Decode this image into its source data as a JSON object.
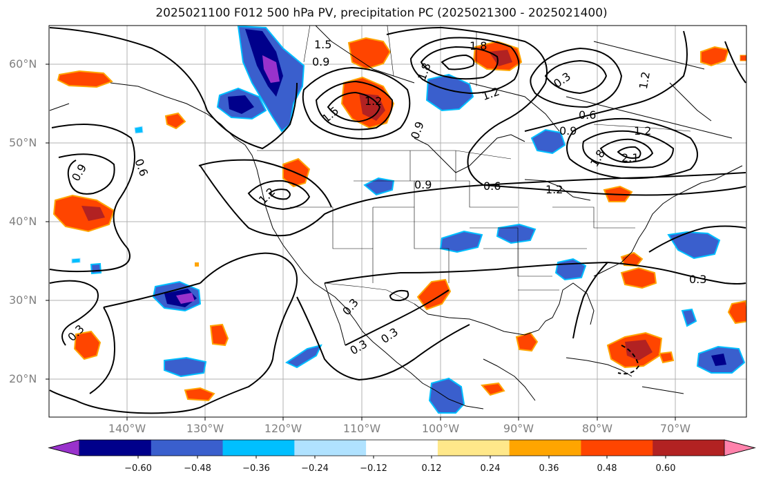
{
  "title": "2025021100 F012 500 hPa PV, precipitation PC (2025021300 - 2025021400)",
  "lat_labels": [
    "60°N",
    "50°N",
    "40°N",
    "30°N",
    "20°N"
  ],
  "lon_labels": [
    "140°W",
    "130°W",
    "120°W",
    "110°W",
    "100°W",
    "90°W",
    "80°W",
    "70°W"
  ],
  "contour_labels": [
    "1.5",
    "0.9",
    "1.8",
    "1.2",
    "1.5",
    "1.2",
    "1.8",
    "0.9",
    "1.2",
    "0.3",
    "0.6",
    "0.9",
    "1.8",
    "2.1",
    "1.2",
    "1.2",
    "0.9",
    "0.6",
    "0.9",
    "1.2",
    "0.6",
    "0.3",
    "0.3",
    "0.3",
    "0.3",
    "0.3"
  ],
  "colorbar": {
    "ticks": [
      "−0.60",
      "−0.48",
      "−0.36",
      "−0.24",
      "−0.12",
      "0.12",
      "0.24",
      "0.36",
      "0.48",
      "0.60"
    ],
    "colors": [
      "#9932cc",
      "#00008b",
      "#3a5fcd",
      "#00bfff",
      "#b0e2ff",
      "#ffffff",
      "#ffe88a",
      "#ffa500",
      "#ff4500",
      "#b22222",
      "#ff82ab"
    ]
  },
  "colors": {
    "negative_fill": "#3a5fcd",
    "positive_fill": "#ff4500",
    "gridline": "#b0b0b0"
  }
}
